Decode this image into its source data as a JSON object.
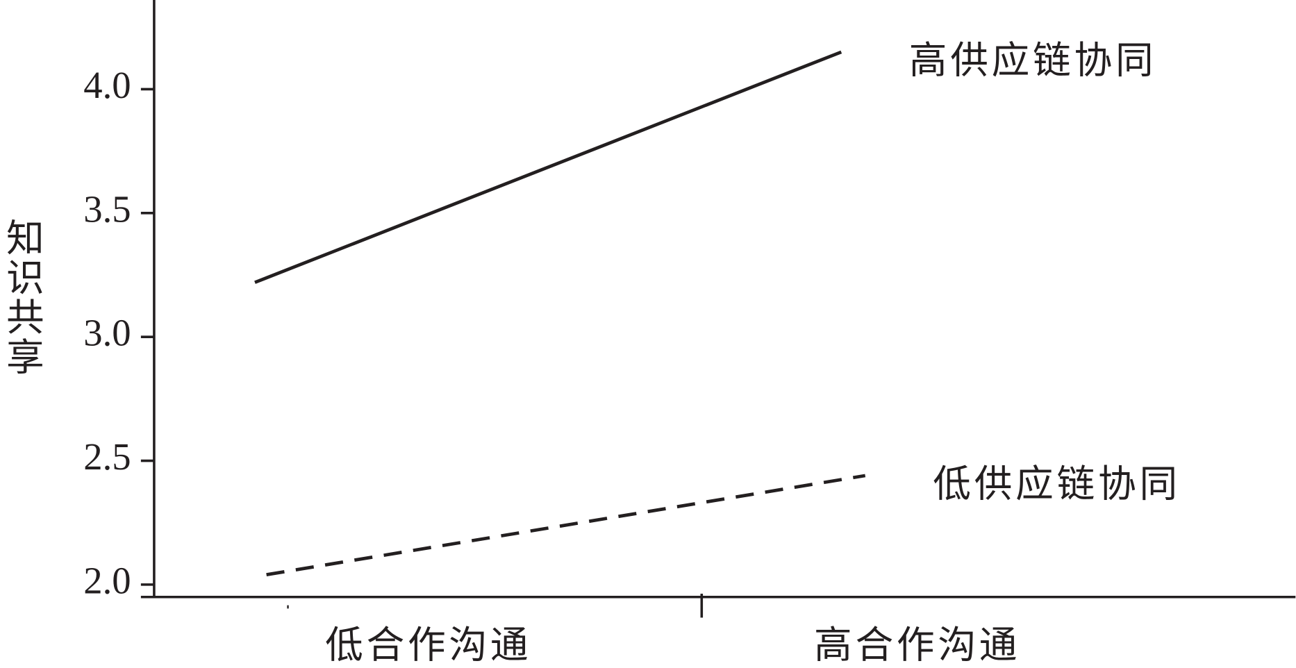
{
  "chart_data": {
    "type": "line",
    "y_label": "知识共享",
    "categories": [
      "低合作沟通",
      "高合作沟通"
    ],
    "series": [
      {
        "name": "高供应链协同",
        "color": "#231f20",
        "style": "solid",
        "values": [
          3.22,
          4.15
        ]
      },
      {
        "name": "低供应链协同",
        "color": "#231f20",
        "style": "dashed",
        "values": [
          2.04,
          2.44
        ]
      }
    ],
    "ylim": [
      1.95,
      4.35
    ],
    "yticks": [
      {
        "value": 2.0,
        "label": "2.0"
      },
      2.5,
      {
        "value": 3.0,
        "label": "3.0"
      },
      3.5,
      {
        "value": 4.0,
        "label": "4.0"
      }
    ]
  }
}
